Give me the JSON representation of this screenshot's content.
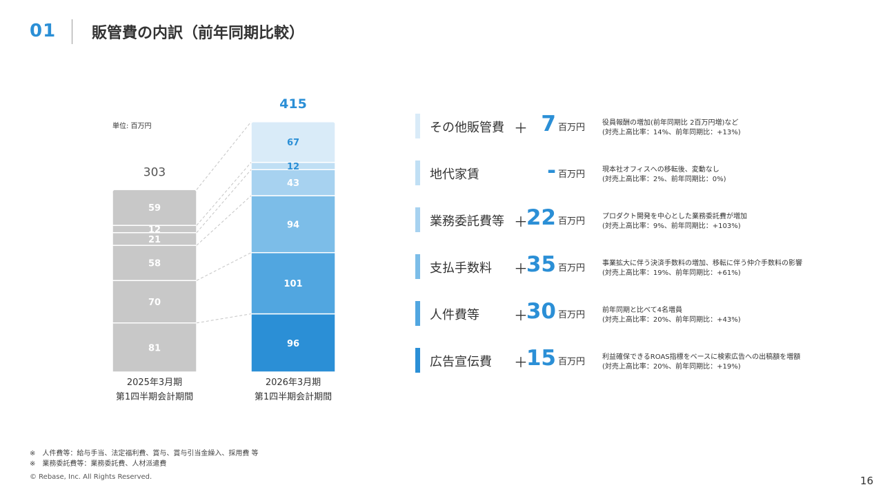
{
  "header": {
    "section_number": "01",
    "title": "販管費の内訳（前年同期比較）"
  },
  "chart_data": {
    "type": "bar",
    "stacked": true,
    "unit": "単位: 百万円",
    "categories": [
      {
        "line1": "2025年3月期",
        "line2": "第1四半期会計期間"
      },
      {
        "line1": "2026年3月期",
        "line2": "第1四半期会計期間"
      }
    ],
    "totals": [
      303,
      415
    ],
    "series": [
      {
        "name": "広告宣伝費",
        "values": [
          81,
          96
        ]
      },
      {
        "name": "人件費等",
        "values": [
          70,
          101
        ]
      },
      {
        "name": "支払手数料",
        "values": [
          58,
          94
        ]
      },
      {
        "name": "業務委託費等",
        "values": [
          21,
          43
        ]
      },
      {
        "name": "地代家賃",
        "values": [
          12,
          12
        ]
      },
      {
        "name": "その他販管費",
        "values": [
          59,
          67
        ]
      }
    ],
    "colors_2025": "#c8c8c8",
    "colors_2026": [
      "#2b8fd6",
      "#51a6e0",
      "#7cbde8",
      "#a7d2f0",
      "#c0dff4",
      "#d9ebf8"
    ],
    "ylim": [
      0,
      415
    ]
  },
  "breakdown": [
    {
      "label": "その他販管費",
      "sign": "＋",
      "value": "7",
      "unit": "百万円",
      "desc1": "役員報酬の増加(前年同期比 2百万円増)など",
      "desc2": "(対売上高比率：14%、前年同期比：+13%)",
      "color": "#d9ebf8"
    },
    {
      "label": "地代家賃",
      "sign": "",
      "value": "-",
      "unit": "百万円",
      "desc1": "現本社オフィスへの移転後、変動なし",
      "desc2": "(対売上高比率：2%、前年同期比：0%)",
      "color": "#c0dff4"
    },
    {
      "label": "業務委託費等",
      "sign": "＋",
      "value": "22",
      "unit": "百万円",
      "desc1": "プロダクト開発を中心とした業務委託費が増加",
      "desc2": "(対売上高比率：9%、前年同期比：+103%)",
      "color": "#a7d2f0"
    },
    {
      "label": "支払手数料",
      "sign": "＋",
      "value": "35",
      "unit": "百万円",
      "desc1": "事業拡大に伴う決済手数料の増加、移転に伴う仲介手数料の影響",
      "desc2": "(対売上高比率：19%、前年同期比：+61%)",
      "color": "#7cbde8"
    },
    {
      "label": "人件費等",
      "sign": "＋",
      "value": "30",
      "unit": "百万円",
      "desc1": "前年同期と比べて4名増員",
      "desc2": "(対売上高比率：20%、前年同期比：+43%)",
      "color": "#51a6e0"
    },
    {
      "label": "広告宣伝費",
      "sign": "＋",
      "value": "15",
      "unit": "百万円",
      "desc1": "利益確保できるROAS指標をベースに検索広告への出稿額を増額",
      "desc2": "(対売上高比率：20%、前年同期比：+19%)",
      "color": "#2b8fd6"
    }
  ],
  "footer": {
    "note1": "※　人件費等：給与手当、法定福利費、賞与、賞与引当金繰入、採用費 等",
    "note2": "※　業務委託費等：業務委託費、人材派遣費",
    "copyright": "© Rebase, Inc. All Rights Reserved.",
    "page_number": "16"
  }
}
